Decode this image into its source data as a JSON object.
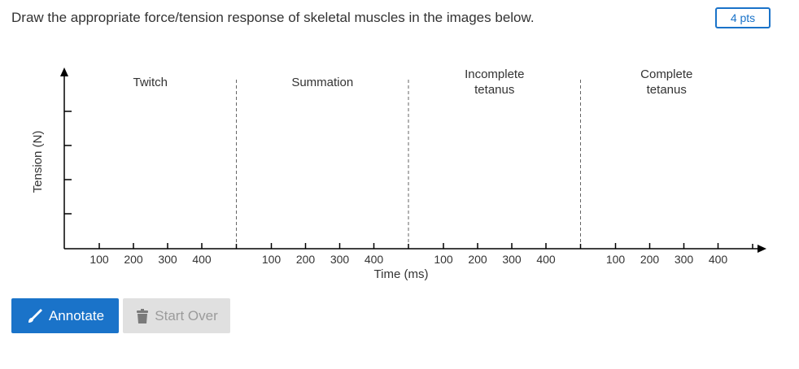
{
  "question": {
    "text": "Draw the appropriate force/tension response of skeletal muscles in the images below.",
    "points_label": "4 pts"
  },
  "chart_data": {
    "type": "line",
    "ylabel": "Tension (N)",
    "xlabel": "Time (ms)",
    "panels": [
      {
        "title_lines": [
          "Twitch"
        ],
        "ticks": [
          "100",
          "200",
          "300",
          "400"
        ]
      },
      {
        "title_lines": [
          "Summation"
        ],
        "ticks": [
          "100",
          "200",
          "300",
          "400"
        ]
      },
      {
        "title_lines": [
          "Incomplete",
          "tetanus"
        ],
        "ticks": [
          "100",
          "200",
          "300",
          "400"
        ]
      },
      {
        "title_lines": [
          "Complete",
          "tetanus"
        ],
        "ticks": [
          "100",
          "200",
          "300",
          "400"
        ]
      }
    ],
    "y_tick_count": 4,
    "series": []
  },
  "buttons": {
    "annotate_label": "Annotate",
    "start_over_label": "Start Over"
  },
  "icons": {
    "annotate": "pencil-icon",
    "start_over": "trash-icon"
  },
  "colors": {
    "accent": "#1a73c9",
    "text": "#333333",
    "disabled_bg": "#e0e0e0",
    "disabled_text": "#9b9b9b"
  }
}
